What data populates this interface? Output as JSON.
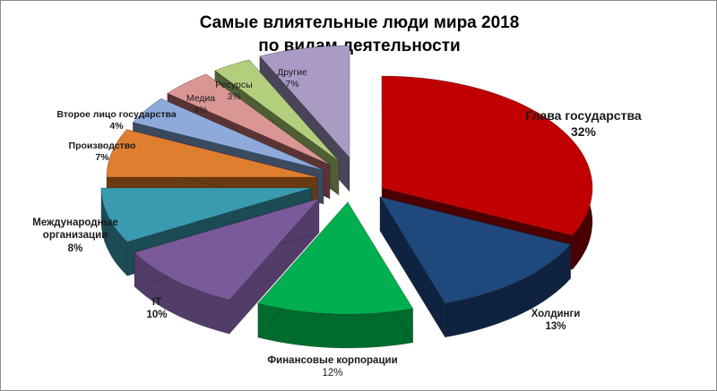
{
  "chart_data": {
    "type": "pie",
    "style": "3d-exploded",
    "title": "Самые влиятельные люди мира 2018 по видам деятельности",
    "title_lines": [
      "Самые влиятельные люди мира 2018",
      "по видам деятельности"
    ],
    "unit": "%",
    "legend": "none (data labels on slices)",
    "slices": [
      {
        "label": "Глава государства",
        "value": 32,
        "value_label": "32%",
        "color": "#c00000",
        "side": "#4a0000"
      },
      {
        "label": "Холдинги",
        "value": 13,
        "value_label": "13%",
        "color": "#1f497d",
        "side": "#0f2340"
      },
      {
        "label": "Финансовые корпорации",
        "value": 12,
        "value_label": "12%",
        "color": "#00b050",
        "side": "#006b2e"
      },
      {
        "label": "IT",
        "value": 10,
        "value_label": "10%",
        "color": "#7a5a9a",
        "side": "#523d69"
      },
      {
        "label": "Международные организации",
        "value": 8,
        "value_label": "8%",
        "color": "#3a9ab0",
        "side": "#1c4a55"
      },
      {
        "label": "Производство",
        "value": 7,
        "value_label": "7%",
        "color": "#e07e30",
        "side": "#6a3a12"
      },
      {
        "label": "Второе лицо государства",
        "value": 4,
        "value_label": "4%",
        "color": "#8eaadb",
        "side": "#3c4a60"
      },
      {
        "label": "Медиа",
        "value": 4,
        "value_label": "4%",
        "color": "#d99694",
        "side": "#5a3434"
      },
      {
        "label": "Ресурсы",
        "value": 3,
        "value_label": "3%",
        "color": "#b3cf7e",
        "side": "#4f5e34"
      },
      {
        "label": "Другие",
        "value": 7,
        "value_label": "7%",
        "color": "#a99bc4",
        "side": "#4a4458"
      }
    ]
  },
  "labels": {
    "head_of_state": {
      "name": "Глава государства",
      "pct": "32%"
    },
    "holdings": {
      "name": "Холдинги",
      "pct": "13%"
    },
    "finance": {
      "name": "Финансовые корпорации",
      "pct": "12%"
    },
    "it": {
      "name": "IT",
      "pct": "10%"
    },
    "intl_org": {
      "name1": "Международные",
      "name2": "организации",
      "pct": "8%"
    },
    "production": {
      "name": "Производство",
      "pct": "7%"
    },
    "second_person": {
      "name": "Второе лицо государства",
      "pct": "4%"
    },
    "media": {
      "name": "Медиа",
      "pct": "4%"
    },
    "resources": {
      "name": "Ресурсы",
      "pct": "3%"
    },
    "others": {
      "name": "Другие",
      "pct": "7%"
    }
  }
}
